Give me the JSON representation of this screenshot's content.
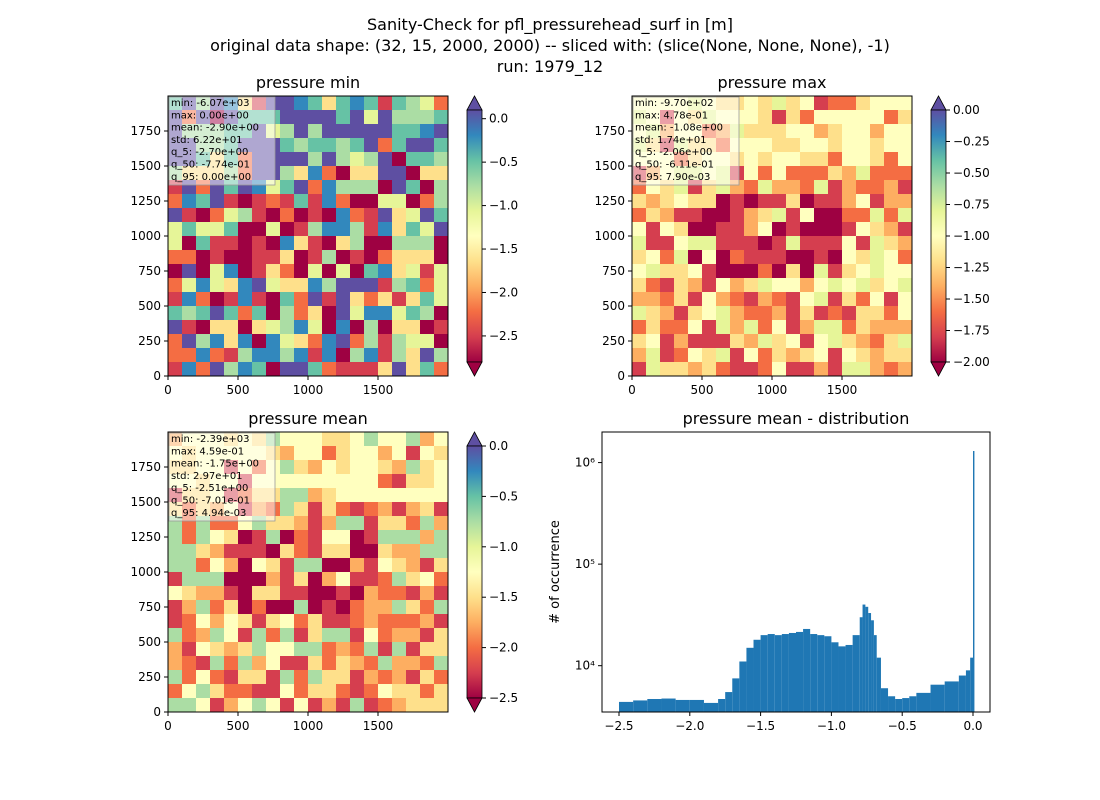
{
  "figure": {
    "title_lines": [
      "Sanity-Check for pfl_pressurehead_surf in [m]",
      "original data shape: (32, 15, 2000, 2000) -- sliced with: (slice(None, None, None), -1)",
      "run: 1979_12"
    ]
  },
  "colors": {
    "spectral_stops": [
      "#9e0142",
      "#d53e4f",
      "#f46d43",
      "#fdae61",
      "#fee08b",
      "#ffffbf",
      "#e6f598",
      "#abdda4",
      "#66c2a5",
      "#3288bd",
      "#5e4fa2"
    ],
    "histogram_bar": "#1f77b4",
    "frame": "#000000"
  },
  "chart_data": [
    {
      "type": "heatmap",
      "title": "pressure min",
      "colormap": "Spectral",
      "xlim": [
        0,
        2000
      ],
      "ylim": [
        0,
        2000
      ],
      "x_ticks": [
        "0",
        "500",
        "1000",
        "1500"
      ],
      "y_ticks": [
        "0",
        "250",
        "500",
        "750",
        "1000",
        "1250",
        "1500",
        "1750"
      ],
      "colorbar": {
        "range": [
          -2.8,
          0.1
        ],
        "extend": "both",
        "ticks": [
          0.0,
          -0.5,
          -1.0,
          -1.5,
          -2.0,
          -2.5
        ],
        "tick_labels": [
          "0.0",
          "−0.5",
          "−1.0",
          "−1.5",
          "−2.0",
          "−2.5"
        ]
      },
      "stats": [
        "min: -6.07e+03",
        "max: 0.00e+00",
        "mean: -2.90e+00",
        "std: 6.22e+01",
        "q_5: -2.70e+00",
        "q_50: -7.74e-01",
        "q_95: 0.00e+00"
      ]
    },
    {
      "type": "heatmap",
      "title": "pressure max",
      "colormap": "Spectral",
      "xlim": [
        0,
        2000
      ],
      "ylim": [
        0,
        2000
      ],
      "x_ticks": [
        "0",
        "500",
        "1000",
        "1500"
      ],
      "y_ticks": [
        "0",
        "250",
        "500",
        "750",
        "1000",
        "1250",
        "1500",
        "1750"
      ],
      "colorbar": {
        "range": [
          -2.0,
          0.0
        ],
        "extend": "both",
        "ticks": [
          0.0,
          -0.25,
          -0.5,
          -0.75,
          -1.0,
          -1.25,
          -1.5,
          -1.75,
          -2.0
        ],
        "tick_labels": [
          "0.00",
          "−0.25",
          "−0.50",
          "−0.75",
          "−1.00",
          "−1.25",
          "−1.50",
          "−1.75",
          "−2.00"
        ]
      },
      "stats": [
        "min: -9.70e+02",
        "max: 4.78e-01",
        "mean: -1.08e+00",
        "std: 1.74e+01",
        "q_5: -2.06e+00",
        "q_50: -6.11e-01",
        "q_95: 7.90e-03"
      ]
    },
    {
      "type": "heatmap",
      "title": "pressure mean",
      "colormap": "Spectral",
      "xlim": [
        0,
        2000
      ],
      "ylim": [
        0,
        2000
      ],
      "x_ticks": [
        "0",
        "500",
        "1000",
        "1500"
      ],
      "y_ticks": [
        "0",
        "250",
        "500",
        "750",
        "1000",
        "1250",
        "1500",
        "1750"
      ],
      "colorbar": {
        "range": [
          -2.5,
          0.0
        ],
        "extend": "both",
        "ticks": [
          0.0,
          -0.5,
          -1.0,
          -1.5,
          -2.0,
          -2.5
        ],
        "tick_labels": [
          "0.0",
          "−0.5",
          "−1.0",
          "−1.5",
          "−2.0",
          "−2.5"
        ]
      },
      "stats": [
        "min: -2.39e+03",
        "max: 4.59e-01",
        "mean: -1.75e+00",
        "std: 2.97e+01",
        "q_5: -2.51e+00",
        "q_50: -7.01e-01",
        "q_95: 4.94e-03"
      ]
    },
    {
      "type": "bar",
      "subtype": "histogram",
      "title": "pressure mean - distribution",
      "xlabel": "",
      "ylabel": "# of occurrence",
      "y_scale": "log",
      "xlim": [
        -2.62,
        0.12
      ],
      "ylim": [
        3500,
        2000000
      ],
      "x_ticks": [
        -2.5,
        -2.0,
        -1.5,
        -1.0,
        -0.5,
        0.0
      ],
      "x_tick_labels": [
        "−2.5",
        "−2.0",
        "−1.5",
        "−1.0",
        "−0.5",
        "0.0"
      ],
      "y_ticks": [
        10000,
        100000,
        1000000
      ],
      "y_tick_labels": [
        "10⁴",
        "10⁵",
        "10⁶"
      ],
      "x": [
        -2.5,
        -2.4,
        -2.3,
        -2.2,
        -2.1,
        -2.0,
        -1.9,
        -1.8,
        -1.75,
        -1.7,
        -1.65,
        -1.6,
        -1.55,
        -1.5,
        -1.45,
        -1.4,
        -1.35,
        -1.3,
        -1.25,
        -1.2,
        -1.15,
        -1.1,
        -1.05,
        -1.0,
        -0.95,
        -0.9,
        -0.85,
        -0.8,
        -0.78,
        -0.76,
        -0.74,
        -0.72,
        -0.7,
        -0.68,
        -0.65,
        -0.6,
        -0.55,
        -0.5,
        -0.45,
        -0.4,
        -0.3,
        -0.2,
        -0.1,
        -0.05,
        -0.02,
        0.0
      ],
      "values": [
        4400,
        4550,
        4700,
        4750,
        4600,
        4600,
        4300,
        4700,
        5500,
        7500,
        11000,
        15000,
        18000,
        20000,
        20500,
        20000,
        20500,
        21000,
        21500,
        23000,
        20500,
        20000,
        19500,
        17000,
        15500,
        16000,
        20000,
        30000,
        40000,
        38000,
        33000,
        28000,
        20000,
        12000,
        6000,
        5000,
        4700,
        4800,
        5000,
        5400,
        6500,
        7000,
        8000,
        9000,
        12000,
        1300000
      ]
    }
  ]
}
